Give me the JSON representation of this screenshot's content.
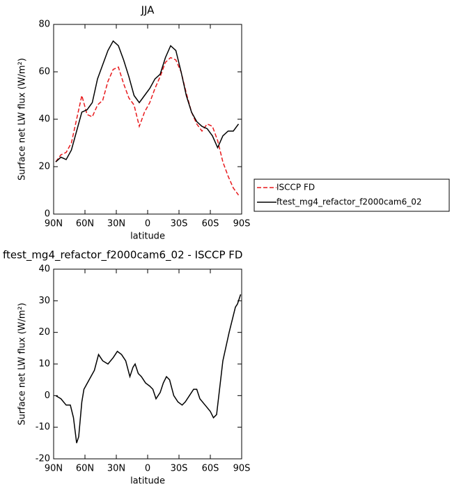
{
  "chart_data": [
    {
      "type": "line",
      "title": "JJA",
      "xlabel": "latitude",
      "ylabel": "Surface net LW flux (W/m²)",
      "x": [
        88,
        83,
        78,
        73,
        68,
        63,
        58,
        53,
        48,
        43,
        38,
        33,
        28,
        23,
        18,
        13,
        8,
        3,
        -2,
        -7,
        -12,
        -17,
        -22,
        -27,
        -32,
        -37,
        -42,
        -47,
        -52,
        -57,
        -62,
        -67,
        -72,
        -77,
        -82,
        -87
      ],
      "series": [
        {
          "name": "ISCCP FD",
          "color": "#e8191c",
          "dash": true,
          "values": [
            22,
            25,
            26,
            30,
            40,
            50,
            42,
            41,
            46,
            48,
            56,
            61,
            62,
            55,
            49,
            46,
            37,
            43,
            47,
            53,
            58,
            64,
            66,
            65,
            60,
            51,
            43,
            38,
            35,
            38,
            37,
            31,
            22,
            16,
            11,
            8
          ]
        },
        {
          "name": "ftest_mg4_refactor_f2000cam6_02",
          "color": "#000000",
          "dash": false,
          "values": [
            22,
            24,
            23,
            27,
            35,
            43,
            44,
            47,
            57,
            63,
            69,
            73,
            71,
            65,
            58,
            50,
            47,
            50,
            53,
            57,
            59,
            66,
            71,
            69,
            60,
            50,
            43,
            39,
            37,
            36,
            33,
            28,
            33,
            35,
            35,
            38
          ]
        }
      ],
      "xlim": [
        90,
        -90
      ],
      "xticks": [
        {
          "value": 90,
          "label": "90N"
        },
        {
          "value": 60,
          "label": "60N"
        },
        {
          "value": 30,
          "label": "30N"
        },
        0,
        {
          "value": -30,
          "label": "30S"
        },
        {
          "value": -60,
          "label": "60S"
        },
        {
          "value": -90,
          "label": "90S"
        }
      ],
      "ylim": [
        0,
        80
      ],
      "yticks": [
        0,
        20,
        40,
        60,
        80
      ],
      "legend": "outside-right"
    },
    {
      "type": "line",
      "title": "ftest_mg4_refactor_f2000cam6_02 - ISCCP FD",
      "xlabel": "latitude",
      "ylabel": "Surface net LW flux (W/m²)",
      "x": [
        88,
        83,
        78,
        74,
        71,
        68,
        66,
        63,
        61,
        56,
        51,
        47,
        43,
        38,
        33,
        29,
        25,
        21,
        17,
        14,
        12,
        9,
        6,
        2,
        -2,
        -5,
        -8,
        -12,
        -15,
        -18,
        -21,
        -25,
        -29,
        -33,
        -36,
        -40,
        -44,
        -47,
        -50,
        -55,
        -60,
        -63,
        -66,
        -72,
        -78,
        -84,
        -86,
        -89
      ],
      "series": [
        {
          "color": "#000000",
          "dash": false,
          "values": [
            0,
            -1,
            -3,
            -3,
            -7,
            -15,
            -13,
            -2,
            2,
            5,
            8,
            13,
            11,
            10,
            12,
            14,
            13,
            11,
            6,
            9,
            10,
            7,
            6,
            4,
            3,
            2,
            -1,
            1,
            4,
            6,
            5,
            0,
            -2,
            -3,
            -2,
            0,
            2,
            2,
            -1,
            -3,
            -5,
            -7,
            -6,
            11,
            20,
            28,
            29,
            32
          ]
        }
      ],
      "xlim": [
        90,
        -90
      ],
      "xticks": [
        {
          "value": 90,
          "label": "90N"
        },
        {
          "value": 60,
          "label": "60N"
        },
        {
          "value": 30,
          "label": "30N"
        },
        0,
        {
          "value": -30,
          "label": "30S"
        },
        {
          "value": -60,
          "label": "60S"
        },
        {
          "value": -90,
          "label": "90S"
        }
      ],
      "ylim": [
        -20,
        40
      ],
      "yticks": [
        -20,
        -10,
        0,
        10,
        20,
        30,
        40
      ]
    }
  ]
}
